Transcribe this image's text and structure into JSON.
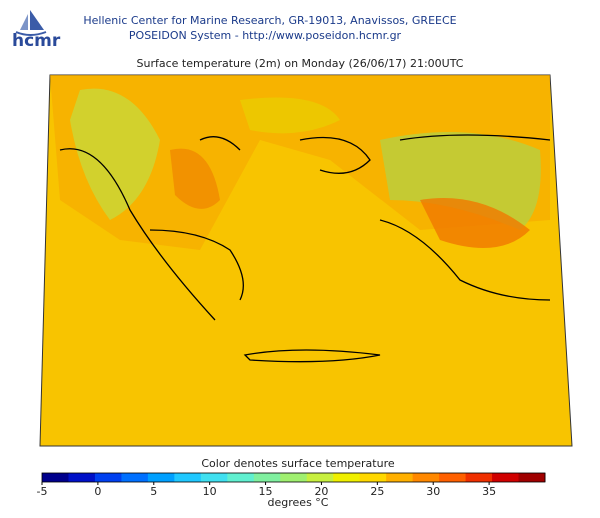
{
  "header": {
    "logo": "hcmr",
    "organization": "Hellenic Center for Marine Research, GR-19013, Anavissos, GREECE",
    "system": "POSEIDON System - http://www.poseidon.hcmr.gr"
  },
  "map": {
    "title": "Surface temperature (2m) on Monday (26/06/17) 21:00UTC"
  },
  "colorbar": {
    "label": "Color denotes surface temperature",
    "unit": "degrees °C",
    "range": [
      -5,
      40
    ],
    "ticks": [
      -5,
      0,
      5,
      10,
      15,
      20,
      25,
      30,
      35
    ],
    "colors": [
      "#00008c",
      "#0010c8",
      "#0040f0",
      "#0070ff",
      "#00a0ff",
      "#20c8ff",
      "#40e0f0",
      "#60f0d0",
      "#80f0a0",
      "#a0f070",
      "#c8f040",
      "#f0f000",
      "#ffd800",
      "#ffb000",
      "#ff8800",
      "#ff6000",
      "#f03000",
      "#d00000",
      "#a00000"
    ]
  }
}
